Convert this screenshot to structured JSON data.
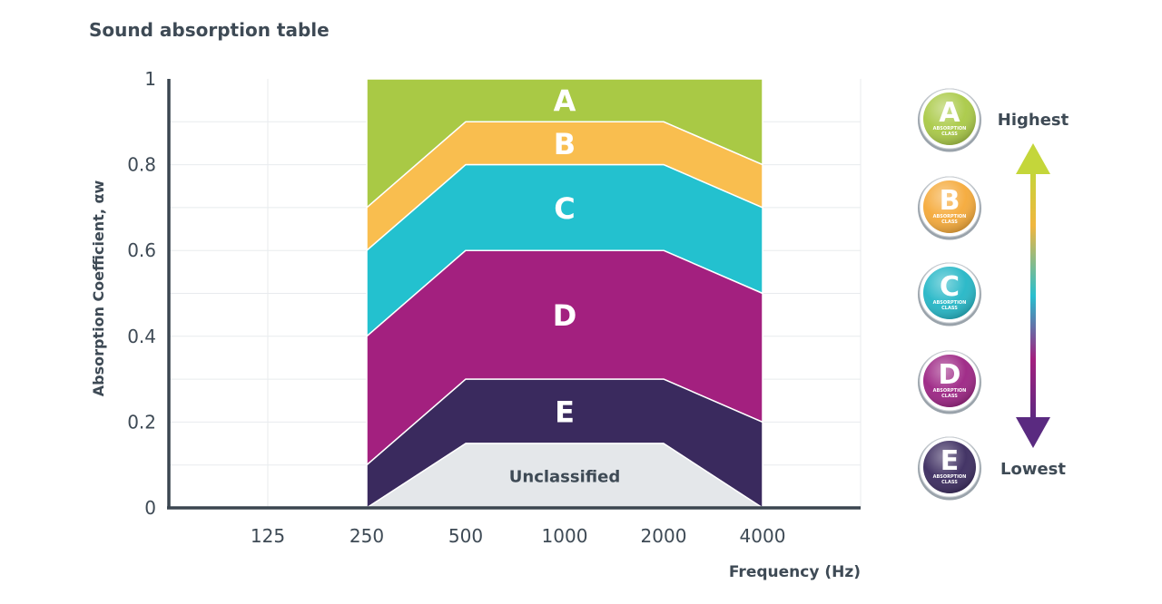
{
  "chart_data": {
    "type": "area",
    "title": "Sound absorption table",
    "xlabel": "Frequency (Hz)",
    "ylabel": "Absorption Coefficient, αw",
    "x_ticks": [
      "125",
      "250",
      "500",
      "1000",
      "2000",
      "4000"
    ],
    "y_ticks": [
      "0",
      "0.2",
      "0.4",
      "0.6",
      "0.8",
      "1"
    ],
    "ylim": [
      0,
      1
    ],
    "grid": true,
    "x_range": [
      "250",
      "500",
      "1000",
      "2000",
      "4000"
    ],
    "bands": [
      {
        "label": "A",
        "color": "#a9c945",
        "lower": [
          0.7,
          0.9,
          0.9,
          0.9,
          0.8
        ],
        "upper": [
          1,
          1,
          1,
          1,
          1
        ]
      },
      {
        "label": "B",
        "color": "#f9be4f",
        "lower": [
          0.6,
          0.8,
          0.8,
          0.8,
          0.7
        ],
        "upper": [
          0.7,
          0.9,
          0.9,
          0.9,
          0.8
        ]
      },
      {
        "label": "C",
        "color": "#23c1cf",
        "lower": [
          0.4,
          0.6,
          0.6,
          0.6,
          0.5
        ],
        "upper": [
          0.6,
          0.8,
          0.8,
          0.8,
          0.7
        ]
      },
      {
        "label": "D",
        "color": "#a3207f",
        "lower": [
          0.1,
          0.3,
          0.3,
          0.3,
          0.2
        ],
        "upper": [
          0.4,
          0.6,
          0.6,
          0.6,
          0.5
        ]
      },
      {
        "label": "E",
        "color": "#3a2a5e",
        "lower": [
          0,
          0.15,
          0.15,
          0.15,
          0
        ],
        "upper": [
          0.1,
          0.3,
          0.3,
          0.3,
          0.2
        ]
      },
      {
        "label": "Unclassified",
        "color": "#e4e7ea",
        "lower": [
          0,
          0,
          0,
          0,
          0
        ],
        "upper": [
          0,
          0.15,
          0.15,
          0.15,
          0
        ]
      }
    ]
  },
  "legend": {
    "highest_label": "Highest",
    "lowest_label": "Lowest",
    "badge_subtext": "ABSORPTION CLASS",
    "badges": [
      {
        "letter": "A",
        "color": "#a9c945"
      },
      {
        "letter": "B",
        "color": "#f5a938"
      },
      {
        "letter": "C",
        "color": "#23b6c6"
      },
      {
        "letter": "D",
        "color": "#9c2383"
      },
      {
        "letter": "E",
        "color": "#3a2a5e"
      }
    ]
  }
}
